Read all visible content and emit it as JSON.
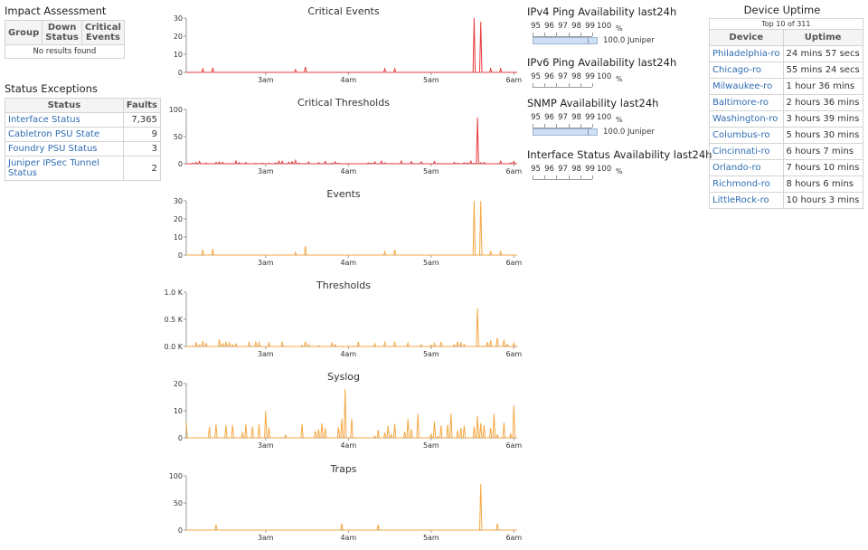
{
  "impact": {
    "title": "Impact Assessment",
    "headers": [
      "Group",
      "Down Status",
      "Critical Events"
    ],
    "empty": "No results found"
  },
  "exceptions": {
    "title": "Status Exceptions",
    "headers": [
      "Status",
      "Faults"
    ],
    "rows": [
      {
        "status": "Interface Status",
        "faults": "7,365"
      },
      {
        "status": "Cabletron PSU State",
        "faults": "9"
      },
      {
        "status": "Foundry PSU Status",
        "faults": "3"
      },
      {
        "status": "Juniper IPSec Tunnel Status",
        "faults": "2"
      }
    ]
  },
  "availability": [
    {
      "title": "IPv4 Ping Availability last24h",
      "scale": [
        "95",
        "96",
        "97",
        "98",
        "99",
        "100"
      ],
      "unit": "%",
      "value": 100.0,
      "label": "100.0 Juniper"
    },
    {
      "title": "IPv6 Ping Availability last24h",
      "scale": [
        "95",
        "96",
        "97",
        "98",
        "99",
        "100"
      ],
      "unit": "%"
    },
    {
      "title": "SNMP Availability last24h",
      "scale": [
        "95",
        "96",
        "97",
        "98",
        "99",
        "100"
      ],
      "unit": "%",
      "value": 100.0,
      "label": "100.0 Juniper"
    },
    {
      "title": "Interface Status Availability last24h",
      "scale": [
        "95",
        "96",
        "97",
        "98",
        "99",
        "100"
      ],
      "unit": "%"
    }
  ],
  "uptime": {
    "title": "Device Uptime",
    "subtitle": "Top 10 of 311",
    "headers": [
      "Device",
      "Uptime"
    ],
    "rows": [
      {
        "device": "Philadelphia-ro",
        "uptime": "24 mins 57 secs"
      },
      {
        "device": "Chicago-ro",
        "uptime": "55 mins 24 secs"
      },
      {
        "device": "Milwaukee-ro",
        "uptime": "1 hour 36 mins"
      },
      {
        "device": "Baltimore-ro",
        "uptime": "2 hours 36 mins"
      },
      {
        "device": "Washington-ro",
        "uptime": "3 hours 39 mins"
      },
      {
        "device": "Columbus-ro",
        "uptime": "5 hours 30 mins"
      },
      {
        "device": "Cincinnati-ro",
        "uptime": "6 hours 7 mins"
      },
      {
        "device": "Orlando-ro",
        "uptime": "7 hours 10 mins"
      },
      {
        "device": "Richmond-ro",
        "uptime": "8 hours 6 mins"
      },
      {
        "device": "LittleRock-ro",
        "uptime": "10 hours 3 mins"
      }
    ]
  },
  "colors": {
    "critical": "#e8393c",
    "normal": "#f5a742",
    "link": "#2f6db3"
  },
  "chart_data": [
    {
      "type": "line",
      "title": "Critical Events",
      "color": "#e8393c",
      "x": [
        "3am",
        "4am",
        "5am",
        "6am"
      ],
      "ylim": [
        0,
        30
      ],
      "yticks": [
        "0",
        "10",
        "20",
        "30"
      ],
      "spikes": [
        [
          0.05,
          2
        ],
        [
          0.08,
          2.5
        ],
        [
          0.33,
          1.5
        ],
        [
          0.36,
          3
        ],
        [
          0.6,
          2
        ],
        [
          0.63,
          2
        ],
        [
          0.87,
          30
        ],
        [
          0.89,
          28
        ],
        [
          0.92,
          2
        ],
        [
          0.95,
          2
        ]
      ]
    },
    {
      "type": "line",
      "title": "Critical Thresholds",
      "color": "#e8393c",
      "x": [
        "3am",
        "4am",
        "5am",
        "6am"
      ],
      "ylim": [
        0,
        100
      ],
      "yticks": [
        "0",
        "50",
        "100"
      ],
      "noise": [
        0,
        5
      ],
      "noise_seed": 7,
      "spikes": [
        [
          0.15,
          5
        ],
        [
          0.33,
          6
        ],
        [
          0.65,
          5
        ],
        [
          0.86,
          5
        ],
        [
          0.88,
          85
        ]
      ]
    },
    {
      "type": "line",
      "title": "Events",
      "color": "#f5a742",
      "x": [
        "3am",
        "4am",
        "5am",
        "6am"
      ],
      "ylim": [
        0,
        30
      ],
      "yticks": [
        "0",
        "10",
        "20",
        "30"
      ],
      "spikes": [
        [
          0.05,
          3
        ],
        [
          0.08,
          3.5
        ],
        [
          0.33,
          1.5
        ],
        [
          0.36,
          5
        ],
        [
          0.6,
          2
        ],
        [
          0.63,
          3
        ],
        [
          0.87,
          30
        ],
        [
          0.89,
          30
        ],
        [
          0.92,
          2
        ],
        [
          0.95,
          2
        ]
      ]
    },
    {
      "type": "line",
      "title": "Thresholds",
      "color": "#f5a742",
      "x": [
        "3am",
        "4am",
        "5am",
        "6am"
      ],
      "ylim": [
        0,
        1000
      ],
      "yticks": [
        "0.0 K",
        "0.5 K",
        "1.0 K"
      ],
      "noise": [
        0,
        90
      ],
      "noise_seed": 11,
      "spikes": [
        [
          0.05,
          100
        ],
        [
          0.1,
          130
        ],
        [
          0.36,
          90
        ],
        [
          0.75,
          60
        ],
        [
          0.88,
          700
        ],
        [
          0.92,
          110
        ],
        [
          0.94,
          160
        ],
        [
          0.96,
          120
        ]
      ]
    },
    {
      "type": "line",
      "title": "Syslog",
      "color": "#f5a742",
      "x": [
        "3am",
        "4am",
        "5am",
        "6am"
      ],
      "ylim": [
        0,
        20
      ],
      "yticks": [
        "0",
        "10",
        "20"
      ],
      "noise": [
        0,
        6
      ],
      "noise_seed": 23,
      "spikes": [
        [
          0.07,
          4
        ],
        [
          0.22,
          5
        ],
        [
          0.24,
          10
        ],
        [
          0.35,
          5
        ],
        [
          0.47,
          7
        ],
        [
          0.48,
          18
        ],
        [
          0.5,
          7
        ],
        [
          0.67,
          7
        ],
        [
          0.7,
          9
        ],
        [
          0.75,
          6
        ],
        [
          0.8,
          9
        ],
        [
          0.88,
          8
        ],
        [
          0.93,
          9
        ],
        [
          0.99,
          12
        ]
      ]
    },
    {
      "type": "line",
      "title": "Traps",
      "color": "#f5a742",
      "x": [
        "3am",
        "4am",
        "5am",
        "6am"
      ],
      "ylim": [
        0,
        100
      ],
      "yticks": [
        "0",
        "50",
        "100"
      ],
      "spikes": [
        [
          0.09,
          10
        ],
        [
          0.47,
          12
        ],
        [
          0.58,
          10
        ],
        [
          0.89,
          85
        ],
        [
          0.94,
          12
        ]
      ]
    }
  ]
}
